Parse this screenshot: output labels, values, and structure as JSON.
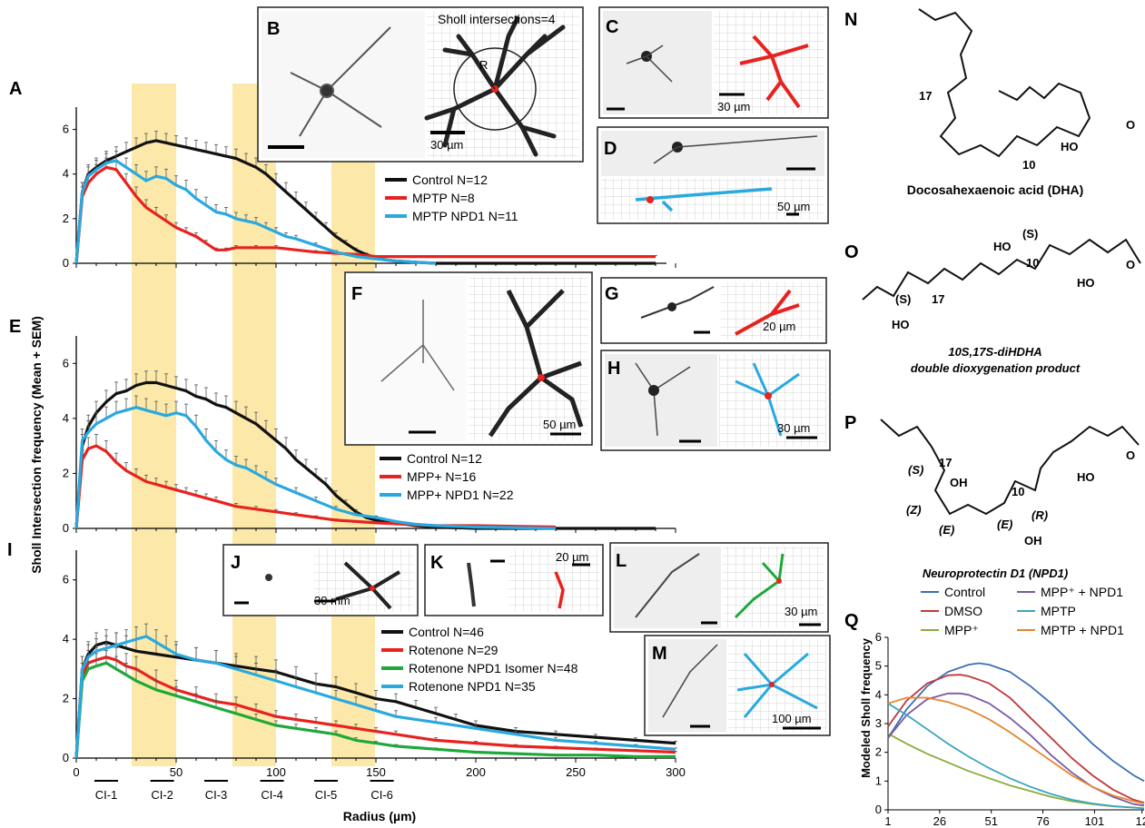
{
  "panel_letters": {
    "A": "A",
    "B": "B",
    "C": "C",
    "D": "D",
    "E": "E",
    "F": "F",
    "G": "G",
    "H": "H",
    "I": "I",
    "J": "J",
    "K": "K",
    "L": "L",
    "M": "M",
    "N": "N",
    "O": "O",
    "P": "P",
    "Q": "Q"
  },
  "y_axis_title": "Sholl Intersection frequency (Mean + SEM)",
  "x_axis_title": "Radius (µm)",
  "x_ticks": [
    "0",
    "50",
    "100",
    "150",
    "200",
    "250",
    "300"
  ],
  "y_ticks": [
    "0",
    "2",
    "4",
    "6"
  ],
  "ci_labels": [
    "CI-1",
    "CI-2",
    "CI-3",
    "CI-4",
    "CI-5",
    "CI-6"
  ],
  "sholl_label": "Sholl intersections=4",
  "radius_label": "R",
  "scale_labels": {
    "B": "30 µm",
    "C": "30 µm",
    "D": "50 µm",
    "F": "50 µm",
    "G": "20 µm",
    "H": "30 µm",
    "J": "30 mm",
    "K": "20 µm",
    "L": "30 µm",
    "M": "100 µm"
  },
  "legend_A": [
    {
      "label": "Control N=12",
      "color": "#111111"
    },
    {
      "label": "MPTP N=8",
      "color": "#e8221e"
    },
    {
      "label": "MPTP NPD1 N=11",
      "color": "#29a9e0"
    }
  ],
  "legend_E": [
    {
      "label": "Control N=12",
      "color": "#111111"
    },
    {
      "label": "MPP+ N=16",
      "color": "#e8221e"
    },
    {
      "label": "MPP+ NPD1 N=22",
      "color": "#29a9e0"
    }
  ],
  "legend_I": [
    {
      "label": "Control N=46",
      "color": "#111111"
    },
    {
      "label": "Rotenone N=29",
      "color": "#e8221e"
    },
    {
      "label": "Rotenone NPD1 Isomer N=48",
      "color": "#1fa83a"
    },
    {
      "label": "Rotenone NPD1 N=35",
      "color": "#29a9e0"
    }
  ],
  "chem": {
    "N_name": "Docosahexaenoic acid (DHA)",
    "N_17": "17",
    "N_10": "10",
    "HO": "HO",
    "O": "O",
    "O_name1": "10S,17S-diHDHA",
    "O_name2": "double dioxygenation product",
    "O_S": "(S)",
    "O_10": "10",
    "O_17": "17",
    "P_name": "Neuroprotectin D1 (NPD1)",
    "P_S": "(S)",
    "P_17": "17",
    "P_OH": "OH",
    "P_Z": "(Z)",
    "P_E1": "(E)",
    "P_E2": "(E)",
    "P_R": "(R)",
    "P_10": "10"
  },
  "Q": {
    "ylabel": "Modeled Sholl frequency",
    "x_ticks": [
      "1",
      "26",
      "51",
      "76",
      "101",
      "12"
    ],
    "y_ticks": [
      "0",
      "1",
      "2",
      "3",
      "4",
      "5",
      "6"
    ],
    "legend": [
      {
        "label": "Control",
        "color": "#3b6fb6"
      },
      {
        "label": "MPP⁺ + NPD1",
        "color": "#7a5aa6"
      },
      {
        "label": "DMSO",
        "color": "#c0393b"
      },
      {
        "label": "MPTP",
        "color": "#3aa6c0"
      },
      {
        "label": "MPP⁺",
        "color": "#8aab3c"
      },
      {
        "label": "MPTP + NPD1",
        "color": "#e6852e"
      }
    ]
  },
  "chart_data": [
    {
      "type": "line",
      "panel": "A",
      "ylabel": "Sholl Intersection frequency (Mean + SEM)",
      "xlim": [
        0,
        300
      ],
      "ylim": [
        0,
        7
      ],
      "series": [
        {
          "name": "Control N=12",
          "color": "#111111",
          "x": [
            0,
            3,
            6,
            10,
            15,
            20,
            25,
            30,
            35,
            40,
            45,
            50,
            55,
            60,
            65,
            70,
            75,
            80,
            85,
            90,
            95,
            100,
            105,
            110,
            115,
            120,
            125,
            130,
            135,
            140,
            145,
            150,
            155,
            160,
            170,
            180,
            200,
            250,
            290
          ],
          "y": [
            0,
            3.2,
            4.0,
            4.3,
            4.6,
            4.8,
            5.0,
            5.2,
            5.4,
            5.5,
            5.4,
            5.3,
            5.2,
            5.1,
            5.0,
            4.9,
            4.8,
            4.7,
            4.5,
            4.3,
            4.0,
            3.6,
            3.2,
            2.8,
            2.4,
            2.0,
            1.6,
            1.2,
            0.9,
            0.6,
            0.4,
            0.25,
            0.15,
            0.1,
            0.05,
            0,
            0,
            0,
            0
          ]
        },
        {
          "name": "MPTP N=8",
          "color": "#e8221e",
          "x": [
            0,
            3,
            6,
            10,
            15,
            20,
            25,
            30,
            35,
            40,
            45,
            50,
            55,
            60,
            65,
            70,
            75,
            80,
            90,
            100,
            120,
            140,
            150,
            200,
            250,
            290
          ],
          "y": [
            0,
            3.0,
            3.6,
            4.0,
            4.3,
            4.2,
            3.6,
            3.0,
            2.5,
            2.2,
            1.9,
            1.6,
            1.4,
            1.2,
            0.9,
            0.6,
            0.6,
            0.7,
            0.7,
            0.7,
            0.5,
            0.4,
            0.3,
            0.3,
            0.3,
            0.3
          ]
        },
        {
          "name": "MPTP NPD1 N=11",
          "color": "#29a9e0",
          "x": [
            0,
            3,
            6,
            10,
            15,
            20,
            25,
            30,
            35,
            40,
            45,
            50,
            55,
            60,
            65,
            70,
            75,
            80,
            85,
            90,
            95,
            100,
            105,
            110,
            120,
            130,
            140,
            150,
            160,
            170,
            180
          ],
          "y": [
            0,
            3.2,
            3.9,
            4.2,
            4.5,
            4.6,
            4.3,
            4.0,
            3.7,
            3.9,
            3.8,
            3.5,
            3.3,
            2.9,
            2.6,
            2.3,
            2.2,
            2.0,
            1.9,
            1.8,
            1.6,
            1.4,
            1.2,
            1.1,
            0.8,
            0.5,
            0.3,
            0.2,
            0.1,
            0.05,
            0
          ]
        }
      ]
    },
    {
      "type": "line",
      "panel": "E",
      "xlim": [
        0,
        300
      ],
      "ylim": [
        0,
        7
      ],
      "series": [
        {
          "name": "Control N=12",
          "color": "#111111",
          "x": [
            0,
            3,
            6,
            10,
            15,
            20,
            25,
            30,
            35,
            40,
            45,
            50,
            55,
            60,
            65,
            70,
            75,
            80,
            85,
            90,
            95,
            100,
            105,
            110,
            115,
            120,
            125,
            130,
            135,
            140,
            145,
            150,
            160,
            170,
            180,
            200,
            250,
            290
          ],
          "y": [
            0,
            3.0,
            3.7,
            4.2,
            4.6,
            4.9,
            5.0,
            5.2,
            5.3,
            5.3,
            5.2,
            5.1,
            5.0,
            4.8,
            4.7,
            4.5,
            4.4,
            4.2,
            4.0,
            3.8,
            3.5,
            3.2,
            2.9,
            2.5,
            2.2,
            1.9,
            1.6,
            1.2,
            0.9,
            0.6,
            0.4,
            0.3,
            0.2,
            0.1,
            0.05,
            0,
            0,
            0
          ]
        },
        {
          "name": "MPP+ N=16",
          "color": "#e8221e",
          "x": [
            0,
            3,
            6,
            10,
            15,
            20,
            25,
            30,
            35,
            40,
            45,
            50,
            55,
            60,
            65,
            70,
            80,
            90,
            100,
            110,
            120,
            130,
            140,
            150,
            180,
            200,
            240
          ],
          "y": [
            0,
            2.5,
            2.9,
            3.0,
            2.8,
            2.4,
            2.1,
            1.9,
            1.7,
            1.6,
            1.5,
            1.4,
            1.3,
            1.2,
            1.1,
            1.0,
            0.8,
            0.7,
            0.6,
            0.5,
            0.4,
            0.3,
            0.25,
            0.2,
            0.1,
            0.1,
            0.05
          ]
        },
        {
          "name": "MPP+ NPD1 N=22",
          "color": "#29a9e0",
          "x": [
            0,
            3,
            6,
            10,
            15,
            20,
            25,
            30,
            35,
            40,
            45,
            50,
            55,
            60,
            65,
            70,
            75,
            80,
            85,
            90,
            95,
            100,
            110,
            120,
            130,
            140,
            150,
            160,
            170,
            180,
            200,
            240
          ],
          "y": [
            0,
            3.2,
            3.5,
            3.8,
            4.0,
            4.2,
            4.3,
            4.4,
            4.3,
            4.2,
            4.1,
            4.2,
            4.1,
            3.7,
            3.2,
            2.8,
            2.5,
            2.3,
            2.2,
            2.0,
            1.8,
            1.6,
            1.3,
            1.0,
            0.7,
            0.5,
            0.4,
            0.25,
            0.15,
            0.1,
            0.05,
            0
          ]
        }
      ]
    },
    {
      "type": "line",
      "panel": "I",
      "xlim": [
        0,
        300
      ],
      "ylim": [
        0,
        7
      ],
      "series": [
        {
          "name": "Control N=46",
          "color": "#111111",
          "x": [
            0,
            3,
            6,
            10,
            15,
            20,
            25,
            30,
            40,
            50,
            60,
            70,
            80,
            90,
            100,
            110,
            120,
            130,
            140,
            150,
            160,
            170,
            180,
            190,
            200,
            220,
            240,
            260,
            280,
            300
          ],
          "y": [
            0,
            3.0,
            3.5,
            3.8,
            3.9,
            3.8,
            3.7,
            3.6,
            3.5,
            3.4,
            3.3,
            3.2,
            3.1,
            3.0,
            2.9,
            2.7,
            2.5,
            2.4,
            2.2,
            2.0,
            1.9,
            1.7,
            1.5,
            1.3,
            1.1,
            0.9,
            0.8,
            0.7,
            0.6,
            0.5
          ]
        },
        {
          "name": "Rotenone N=29",
          "color": "#e8221e",
          "x": [
            0,
            3,
            6,
            10,
            15,
            20,
            25,
            30,
            40,
            50,
            60,
            70,
            80,
            90,
            100,
            110,
            120,
            130,
            140,
            150,
            160,
            180,
            200,
            220,
            240,
            260,
            280,
            300
          ],
          "y": [
            0,
            2.8,
            3.2,
            3.3,
            3.4,
            3.3,
            3.1,
            3.0,
            2.6,
            2.3,
            2.1,
            1.9,
            1.8,
            1.6,
            1.4,
            1.3,
            1.2,
            1.1,
            1.0,
            0.9,
            0.8,
            0.6,
            0.5,
            0.4,
            0.35,
            0.3,
            0.25,
            0.2
          ]
        },
        {
          "name": "Rotenone NPD1 Isomer N=48",
          "color": "#1fa83a",
          "x": [
            0,
            3,
            6,
            10,
            15,
            20,
            25,
            30,
            40,
            50,
            60,
            70,
            80,
            90,
            100,
            110,
            120,
            130,
            140,
            150,
            160,
            180,
            200,
            220,
            240,
            260,
            280,
            300
          ],
          "y": [
            0,
            2.6,
            3.0,
            3.1,
            3.2,
            3.0,
            2.8,
            2.6,
            2.3,
            2.1,
            1.9,
            1.7,
            1.5,
            1.3,
            1.1,
            1.0,
            0.9,
            0.8,
            0.6,
            0.5,
            0.4,
            0.3,
            0.2,
            0.15,
            0.1,
            0.1,
            0.05,
            0.05
          ]
        },
        {
          "name": "Rotenone NPD1 N=35",
          "color": "#29a9e0",
          "x": [
            0,
            3,
            6,
            10,
            15,
            20,
            25,
            30,
            35,
            40,
            45,
            50,
            60,
            70,
            80,
            90,
            100,
            110,
            120,
            130,
            140,
            150,
            160,
            180,
            200,
            220,
            240,
            260,
            280,
            300
          ],
          "y": [
            0,
            3.0,
            3.4,
            3.6,
            3.7,
            3.8,
            3.9,
            4.0,
            4.1,
            3.9,
            3.7,
            3.5,
            3.3,
            3.2,
            3.0,
            2.8,
            2.6,
            2.4,
            2.2,
            2.0,
            1.8,
            1.6,
            1.4,
            1.2,
            1.0,
            0.8,
            0.6,
            0.5,
            0.4,
            0.3
          ]
        }
      ]
    },
    {
      "type": "line",
      "panel": "Q",
      "ylabel": "Modeled Sholl frequency",
      "xlim": [
        1,
        125
      ],
      "ylim": [
        0,
        6
      ],
      "series": [
        {
          "name": "Control",
          "color": "#3b6fb6",
          "x": [
            1,
            10,
            20,
            30,
            40,
            45,
            50,
            60,
            70,
            80,
            90,
            100,
            110,
            120,
            125
          ],
          "y": [
            2.5,
            3.5,
            4.3,
            4.8,
            5.05,
            5.1,
            5.05,
            4.8,
            4.3,
            3.7,
            3.0,
            2.3,
            1.7,
            1.2,
            1.0
          ]
        },
        {
          "name": "DMSO",
          "color": "#c0393b",
          "x": [
            1,
            10,
            20,
            30,
            36,
            40,
            50,
            60,
            70,
            80,
            90,
            100,
            110,
            120,
            125
          ],
          "y": [
            2.9,
            3.8,
            4.4,
            4.68,
            4.7,
            4.65,
            4.4,
            3.9,
            3.2,
            2.5,
            1.8,
            1.2,
            0.7,
            0.35,
            0.25
          ]
        },
        {
          "name": "MPP⁺",
          "color": "#8aab3c",
          "x": [
            1,
            10,
            20,
            30,
            40,
            50,
            60,
            70,
            80,
            90,
            100,
            110,
            120,
            125
          ],
          "y": [
            2.65,
            2.3,
            1.95,
            1.65,
            1.35,
            1.1,
            0.85,
            0.65,
            0.45,
            0.3,
            0.2,
            0.12,
            0.08,
            0.05
          ]
        },
        {
          "name": "MPP⁺ + NPD1",
          "color": "#7a5aa6",
          "x": [
            1,
            10,
            20,
            30,
            36,
            40,
            50,
            60,
            70,
            80,
            90,
            100,
            110,
            120,
            125
          ],
          "y": [
            2.5,
            3.3,
            3.85,
            4.05,
            4.05,
            4.0,
            3.7,
            3.2,
            2.6,
            1.9,
            1.3,
            0.8,
            0.45,
            0.2,
            0.15
          ]
        },
        {
          "name": "MPTP",
          "color": "#3aa6c0",
          "x": [
            1,
            10,
            20,
            30,
            40,
            50,
            60,
            70,
            80,
            90,
            100,
            110,
            120,
            125
          ],
          "y": [
            3.7,
            3.3,
            2.8,
            2.3,
            1.85,
            1.45,
            1.1,
            0.8,
            0.55,
            0.35,
            0.22,
            0.13,
            0.08,
            0.05
          ]
        },
        {
          "name": "MPTP + NPD1",
          "color": "#e6852e",
          "x": [
            1,
            10,
            20,
            30,
            40,
            50,
            60,
            70,
            80,
            90,
            100,
            110,
            120,
            125
          ],
          "y": [
            3.7,
            3.9,
            3.9,
            3.75,
            3.5,
            3.15,
            2.7,
            2.2,
            1.7,
            1.2,
            0.8,
            0.5,
            0.3,
            0.22
          ]
        }
      ]
    }
  ]
}
